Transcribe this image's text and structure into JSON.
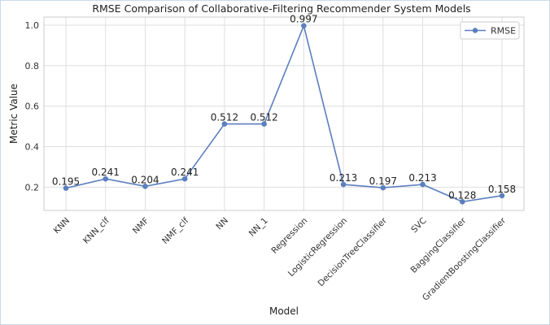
{
  "chart_data": {
    "type": "line",
    "title": "RMSE Comparison of Collaborative-Filtering Recommender System Models",
    "xlabel": "Model",
    "ylabel": "Metric Value",
    "categories": [
      "KNN",
      "KNN_clf",
      "NMF",
      "NMF_clf",
      "NN",
      "NN_1",
      "Regression",
      "LogisticRegression",
      "DecisionTreeClassifier",
      "SVC",
      "BaggingClassifier",
      "GradientBoostingClassifier"
    ],
    "series": [
      {
        "name": "RMSE",
        "values": [
          0.195,
          0.241,
          0.204,
          0.241,
          0.512,
          0.512,
          0.997,
          0.213,
          0.197,
          0.213,
          0.128,
          0.158
        ],
        "data_labels": [
          "0.195",
          "0.241",
          "0.204",
          "0.241",
          "0.512",
          "0.512",
          "0.997",
          "0.213",
          "0.197",
          "0.213",
          "0.128",
          "0.158"
        ]
      }
    ],
    "yticks": [
      "0.2",
      "0.4",
      "0.6",
      "0.8",
      "1.0"
    ],
    "ylim": [
      0.085,
      1.04
    ],
    "grid": true,
    "legend_position": "top-right",
    "line_color": "#5b7fbf",
    "grid_color": "#dedede"
  }
}
